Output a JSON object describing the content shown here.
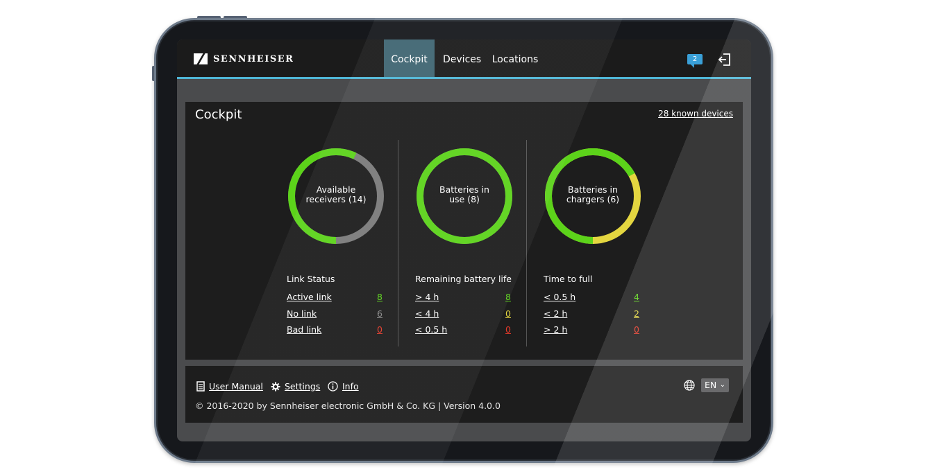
{
  "brand": {
    "name": "SENNHEISER"
  },
  "nav": {
    "tabs": [
      {
        "label": "Cockpit",
        "active": true
      },
      {
        "label": "Devices",
        "active": false
      },
      {
        "label": "Locations",
        "active": false
      }
    ],
    "notifications_count": "2",
    "accent_color": "#4fb6d6"
  },
  "cockpit": {
    "title": "Cockpit",
    "known_devices_link": "28 known devices",
    "receivers": {
      "ring_label_line1": "Available",
      "ring_label_line2": "receivers (14)",
      "ring_fraction_green": 0.57,
      "stats_title": "Link Status",
      "rows": [
        {
          "label": "Active link",
          "value": "8",
          "color": "green"
        },
        {
          "label": "No link",
          "value": "6",
          "color": "gray"
        },
        {
          "label": "Bad link",
          "value": "0",
          "color": "red"
        }
      ]
    },
    "batteries_in_use": {
      "ring_label_line1": "Batteries in",
      "ring_label_line2": "use (8)",
      "ring_fraction_green": 1.0,
      "stats_title": "Remaining battery life",
      "rows": [
        {
          "label": "> 4 h",
          "value": "8",
          "color": "green"
        },
        {
          "label": "< 4 h",
          "value": "0",
          "color": "yellow"
        },
        {
          "label": "< 0.5 h",
          "value": "0",
          "color": "red"
        }
      ]
    },
    "batteries_in_chargers": {
      "ring_label_line1": "Batteries in",
      "ring_label_line2": "chargers (6)",
      "ring_fraction_green": 0.67,
      "stats_title": "Time to full",
      "rows": [
        {
          "label": "< 0.5 h",
          "value": "4",
          "color": "green"
        },
        {
          "label": "< 2 h",
          "value": "2",
          "color": "yellow"
        },
        {
          "label": "> 2 h",
          "value": "0",
          "color": "red"
        }
      ]
    },
    "colors": {
      "green": "#5cd31a",
      "gray": "#7a7a7a",
      "yellow": "#e4d640",
      "red": "#e83a2a"
    }
  },
  "footer": {
    "user_manual": "User Manual",
    "settings": "Settings",
    "info": "Info",
    "language": "EN",
    "copyright": "© 2016-2020 by Sennheiser electronic GmbH & Co. KG | Version 4.0.0"
  }
}
